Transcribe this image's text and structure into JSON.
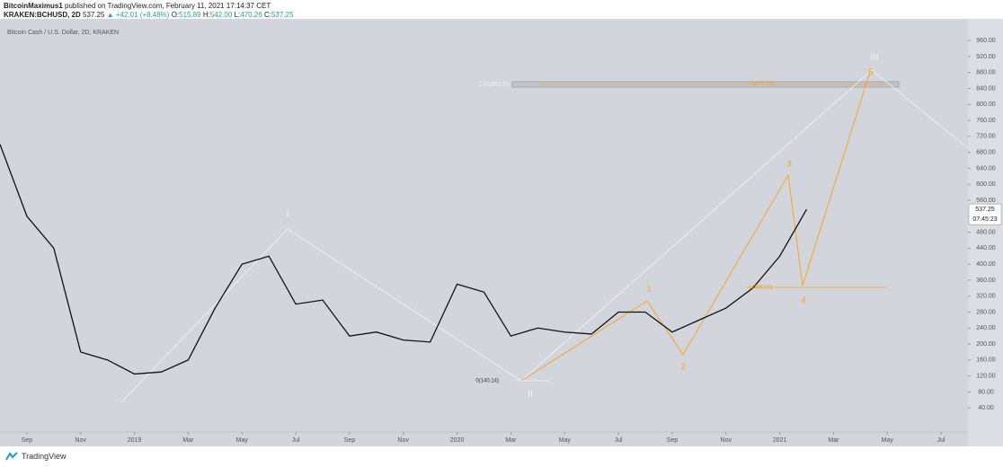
{
  "header": {
    "author": "BitcoinMaximus1",
    "published": "published on TradingView.com, February 11, 2021 17:14:37 CET",
    "symbol": "KRAKEN:BCHUSD, 2D",
    "last": "537.25",
    "change": "▲ +42.01 (+8.48%)",
    "ohlc": [
      {
        "label": "O:",
        "value": "515.89"
      },
      {
        "label": "H:",
        "value": "542.00"
      },
      {
        "label": "L:",
        "value": "470.26"
      },
      {
        "label": "C:",
        "value": "537.25"
      }
    ]
  },
  "chart_data": {
    "type": "line",
    "title": "Bitcoin Cash / U.S. Dollar, 2D, KRAKEN",
    "color": "#111111",
    "x": [
      "2018-08",
      "2018-09",
      "2018-10",
      "2018-11",
      "2018-12",
      "2019-01",
      "2019-02",
      "2019-03",
      "2019-04",
      "2019-05",
      "2019-06",
      "2019-07",
      "2019-08",
      "2019-09",
      "2019-10",
      "2019-11",
      "2019-12",
      "2020-01",
      "2020-02",
      "2020-03",
      "2020-04",
      "2020-05",
      "2020-06",
      "2020-07",
      "2020-08",
      "2020-09",
      "2020-10",
      "2020-11",
      "2020-12",
      "2021-01",
      "2021-02"
    ],
    "values": [
      700,
      520,
      440,
      180,
      160,
      125,
      130,
      160,
      290,
      400,
      420,
      300,
      310,
      220,
      230,
      210,
      205,
      350,
      330,
      220,
      240,
      230,
      225,
      280,
      280,
      230,
      260,
      290,
      340,
      420,
      537.25
    ],
    "xlim": [
      "2018-08",
      "2021-08"
    ],
    "xticks": [
      {
        "value": "2018-09",
        "label": "Sep"
      },
      {
        "value": "2018-11",
        "label": "Nov"
      },
      {
        "value": "2019-01",
        "label": "2019"
      },
      {
        "value": "2019-03",
        "label": "Mar"
      },
      {
        "value": "2019-05",
        "label": "May"
      },
      {
        "value": "2019-07",
        "label": "Jul"
      },
      {
        "value": "2019-09",
        "label": "Sep"
      },
      {
        "value": "2019-11",
        "label": "Nov"
      },
      {
        "value": "2020-01",
        "label": "2020"
      },
      {
        "value": "2020-03",
        "label": "Mar"
      },
      {
        "value": "2020-05",
        "label": "May"
      },
      {
        "value": "2020-07",
        "label": "Jul"
      },
      {
        "value": "2020-09",
        "label": "Sep"
      },
      {
        "value": "2020-11",
        "label": "Nov"
      },
      {
        "value": "2021-01",
        "label": "2021"
      },
      {
        "value": "2021-03",
        "label": "Mar"
      },
      {
        "value": "2021-05",
        "label": "May"
      },
      {
        "value": "2021-07",
        "label": "Jul"
      }
    ],
    "ylim": [
      -18,
      1012
    ],
    "yticks": [
      {
        "value": 40,
        "label": "40.00"
      },
      {
        "value": 80,
        "label": "80.00"
      },
      {
        "value": 120,
        "label": "120.00"
      },
      {
        "value": 160,
        "label": "160.00"
      },
      {
        "value": 200,
        "label": "200.00"
      },
      {
        "value": 240,
        "label": "240.00"
      },
      {
        "value": 280,
        "label": "280.00"
      },
      {
        "value": 320,
        "label": "320.00"
      },
      {
        "value": 360,
        "label": "360.00"
      },
      {
        "value": 400,
        "label": "400.00"
      },
      {
        "value": 440,
        "label": "440.00"
      },
      {
        "value": 480,
        "label": "480.00"
      },
      {
        "value": 520,
        "label": "520.00"
      },
      {
        "value": 560,
        "label": "560.00"
      },
      {
        "value": 600,
        "label": "600.00"
      },
      {
        "value": 640,
        "label": "640.00"
      },
      {
        "value": 680,
        "label": "680.00"
      },
      {
        "value": 720,
        "label": "720.00"
      },
      {
        "value": 760,
        "label": "760.00"
      },
      {
        "value": 800,
        "label": "800.00"
      },
      {
        "value": 840,
        "label": "840.00"
      },
      {
        "value": 880,
        "label": "880.00"
      },
      {
        "value": 920,
        "label": "920.00"
      },
      {
        "value": 960,
        "label": "960.00"
      }
    ],
    "last_price": 537.25,
    "countdown": "07:45:23",
    "annotations": {
      "waves": [
        "I",
        "II",
        "III"
      ],
      "subwaves": [
        "1",
        "2",
        "3",
        "4",
        "5"
      ],
      "fib_labels": [
        "1.61(853.37)",
        "0(857.50)",
        "0(140.14)",
        "1(366.14)"
      ]
    }
  },
  "footer": {
    "brand": "TradingView"
  }
}
